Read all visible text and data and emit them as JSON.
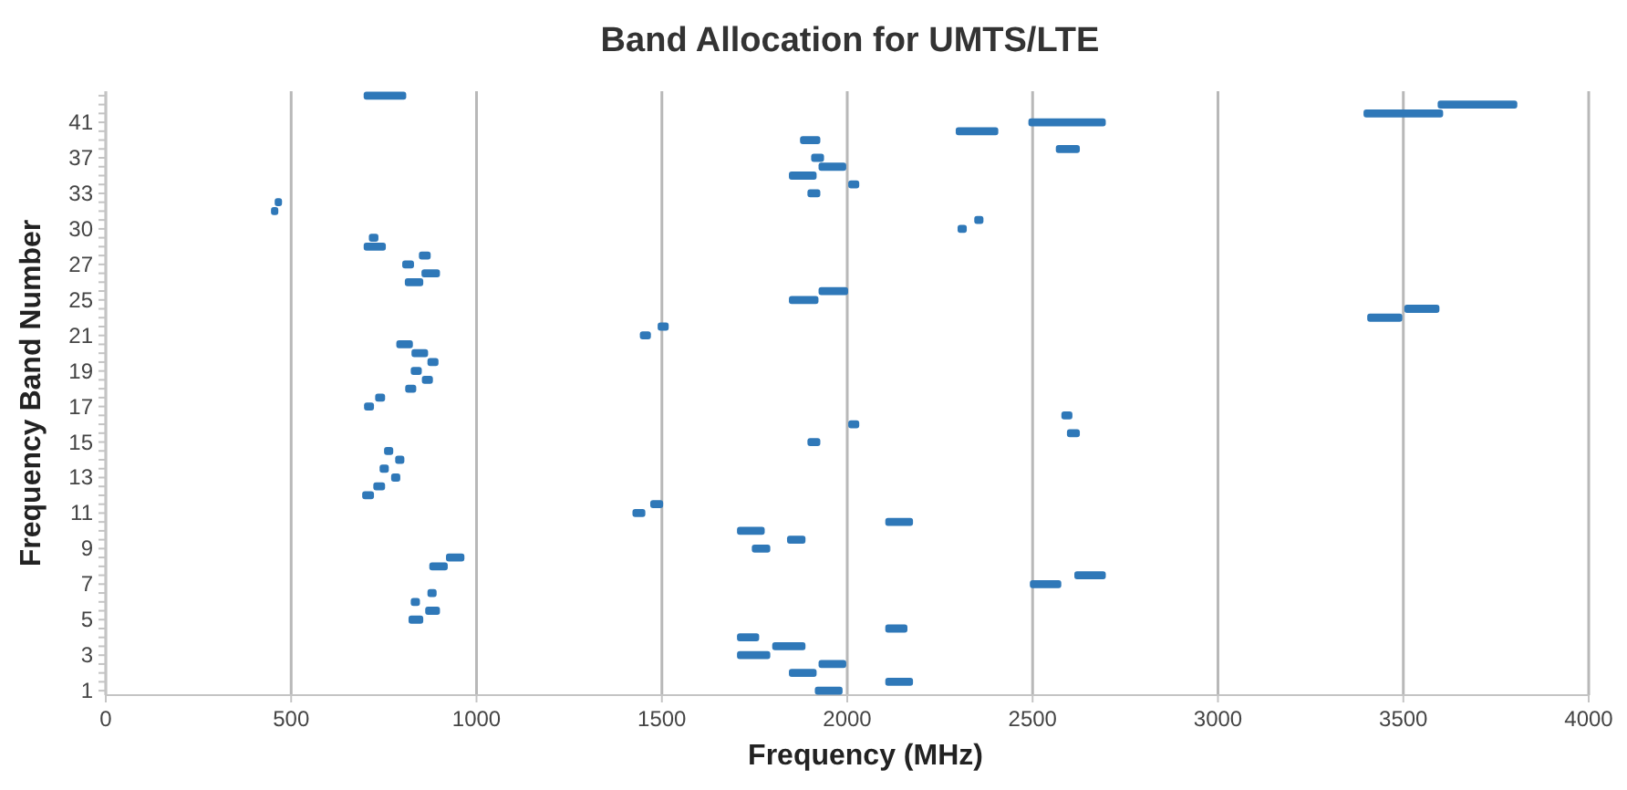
{
  "chart_data": {
    "type": "bar",
    "orientation": "horizontal",
    "title": "Band Allocation for UMTS/LTE",
    "xlabel": "Frequency (MHz)",
    "ylabel": "Frequency Band Number",
    "categories": [
      null,
      null,
      null,
      "41",
      null,
      null,
      null,
      "37",
      null,
      null,
      null,
      "33",
      null,
      null,
      null,
      "30",
      null,
      null,
      null,
      "27",
      null,
      null,
      null,
      "25",
      null,
      null,
      null,
      "21",
      null,
      null,
      null,
      "19",
      null,
      null,
      null,
      "17",
      null,
      null,
      null,
      "15",
      null,
      null,
      null,
      "13",
      null,
      null,
      null,
      "11",
      null,
      null,
      null,
      "9",
      null,
      null,
      null,
      "7",
      null,
      null,
      null,
      "5",
      null,
      null,
      null,
      "3",
      null,
      null,
      null,
      "1"
    ],
    "series": [
      {
        "color": "#2f78b8",
        "base": [
          703,
          3600,
          3400,
          2496,
          2300,
          1880,
          2570,
          1910,
          1930,
          1850,
          2010,
          1900,
          463,
          453,
          2350,
          2305,
          717,
          703,
          852,
          807,
          859,
          814,
          1930,
          1850,
          3510,
          3410,
          1496,
          1448,
          791,
          832,
          875,
          830,
          860,
          815,
          734,
          704,
          2585,
          2010,
          2600,
          1900,
          758,
          788,
          746,
          777,
          729,
          699,
          1476,
          1428,
          2110,
          1710,
          1845,
          1750,
          925,
          880,
          2620,
          2500,
          875,
          830,
          869,
          824,
          2110,
          1710,
          1805,
          1710,
          1930,
          1850,
          2110,
          1920
        ],
        "values": [
          100,
          200,
          200,
          194,
          100,
          40,
          50,
          20,
          60,
          60,
          15,
          20,
          5,
          5,
          10,
          10,
          11,
          45,
          17,
          17,
          35,
          35,
          65,
          65,
          80,
          80,
          15,
          15,
          30,
          30,
          15,
          15,
          15,
          15,
          12,
          12,
          15,
          15,
          20,
          20,
          10,
          10,
          10,
          10,
          17,
          17,
          20,
          20,
          60,
          60,
          35,
          35,
          35,
          35,
          70,
          70,
          10,
          10,
          25,
          25,
          45,
          45,
          75,
          75,
          60,
          60,
          60,
          60
        ]
      }
    ],
    "xlim": [
      0,
      4000
    ],
    "xticks": [
      0,
      500,
      1000,
      1500,
      2000,
      2500,
      3000,
      3500,
      4000
    ],
    "grid": "x"
  }
}
